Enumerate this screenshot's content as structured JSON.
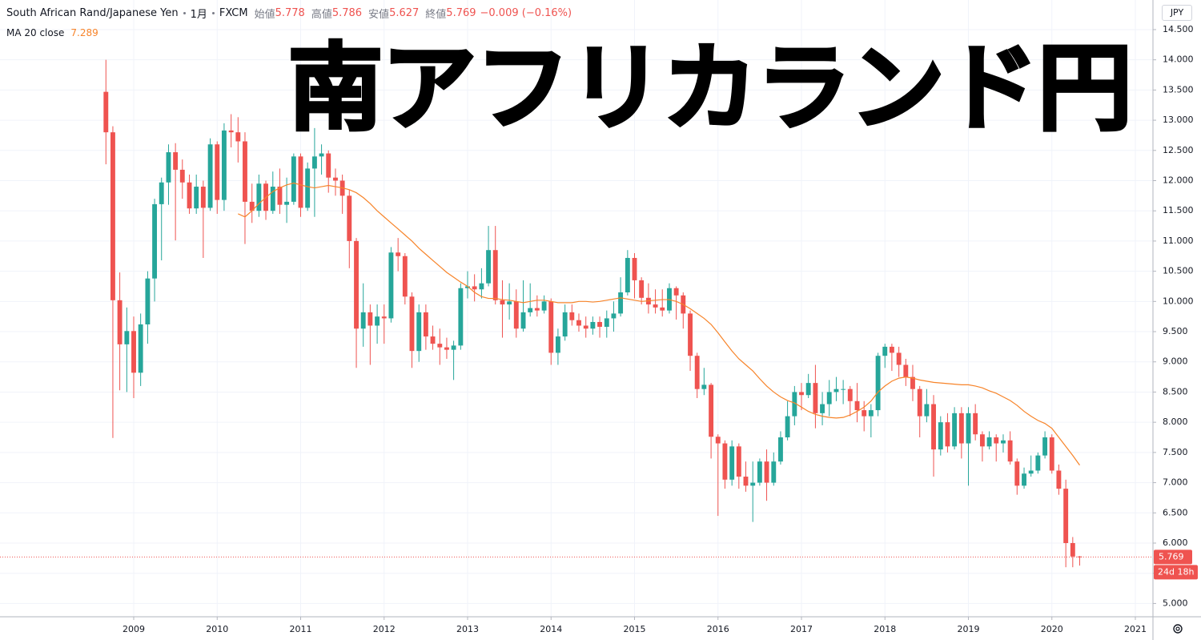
{
  "chart_data": {
    "type": "candlestick",
    "symbol": "South African Rand/Japanese Yen",
    "interval": "1月",
    "exchange": "FXCM",
    "ohlc_labels": [
      "始値",
      "高値",
      "安値",
      "終値"
    ],
    "change": "−0.009 (−0.16%)",
    "overlay_title": "南アフリカランド円",
    "currency": "JPY",
    "countdown": "24d 18h",
    "up_color": "#26a69a",
    "down_color": "#ef5350",
    "grid": true,
    "x": [
      2008.667,
      2008.75,
      2008.833,
      2008.917,
      2009,
      2009.083,
      2009.167,
      2009.25,
      2009.333,
      2009.417,
      2009.5,
      2009.583,
      2009.667,
      2009.75,
      2009.833,
      2009.917,
      2010,
      2010.083,
      2010.167,
      2010.25,
      2010.333,
      2010.417,
      2010.5,
      2010.583,
      2010.667,
      2010.75,
      2010.833,
      2010.917,
      2011,
      2011.083,
      2011.167,
      2011.25,
      2011.333,
      2011.417,
      2011.5,
      2011.583,
      2011.667,
      2011.75,
      2011.833,
      2011.917,
      2012,
      2012.083,
      2012.167,
      2012.25,
      2012.333,
      2012.417,
      2012.5,
      2012.583,
      2012.667,
      2012.75,
      2012.833,
      2012.917,
      2013,
      2013.083,
      2013.167,
      2013.25,
      2013.333,
      2013.417,
      2013.5,
      2013.583,
      2013.667,
      2013.75,
      2013.833,
      2013.917,
      2014,
      2014.083,
      2014.167,
      2014.25,
      2014.333,
      2014.417,
      2014.5,
      2014.583,
      2014.667,
      2014.75,
      2014.833,
      2014.917,
      2015,
      2015.083,
      2015.167,
      2015.25,
      2015.333,
      2015.417,
      2015.5,
      2015.583,
      2015.667,
      2015.75,
      2015.833,
      2015.917,
      2016,
      2016.083,
      2016.167,
      2016.25,
      2016.333,
      2016.417,
      2016.5,
      2016.583,
      2016.667,
      2016.75,
      2016.833,
      2016.917,
      2017,
      2017.083,
      2017.167,
      2017.25,
      2017.333,
      2017.417,
      2017.5,
      2017.583,
      2017.667,
      2017.75,
      2017.833,
      2017.917,
      2018,
      2018.083,
      2018.167,
      2018.25,
      2018.333,
      2018.417,
      2018.5,
      2018.583,
      2018.667,
      2018.75,
      2018.833,
      2018.917,
      2019,
      2019.083,
      2019.167,
      2019.25,
      2019.333,
      2019.417,
      2019.5,
      2019.583,
      2019.667,
      2019.75,
      2019.833,
      2019.917,
      2020,
      2020.083,
      2020.167,
      2020.25,
      2020.333
    ],
    "open": [
      13.47,
      12.8,
      10.02,
      9.29,
      9.51,
      8.82,
      9.62,
      10.38,
      11.61,
      11.97,
      12.47,
      12.18,
      11.97,
      11.54,
      11.9,
      11.55,
      12.6,
      11.68,
      12.83,
      12.8,
      12.65,
      11.65,
      11.5,
      11.95,
      11.5,
      11.9,
      11.6,
      11.65,
      12.4,
      11.55,
      12.2,
      12.4,
      12.45,
      12.05,
      12.0,
      11.75,
      11.0,
      9.55,
      9.82,
      9.6,
      9.75,
      9.72,
      10.81,
      10.75,
      10.08,
      9.18,
      9.82,
      9.42,
      9.3,
      9.24,
      9.2,
      9.27,
      10.22,
      10.25,
      10.2,
      10.3,
      10.85,
      10.02,
      9.95,
      10.0,
      9.55,
      9.82,
      9.89,
      9.85,
      10.0,
      9.15,
      9.42,
      9.82,
      9.69,
      9.6,
      9.55,
      9.66,
      9.58,
      9.72,
      9.8,
      10.15,
      10.72,
      10.35,
      10.06,
      9.95,
      9.9,
      9.85,
      10.22,
      10.1,
      9.8,
      9.1,
      8.55,
      8.62,
      7.76,
      7.65,
      7.05,
      7.6,
      7.1,
      6.95,
      7.0,
      7.35,
      7.0,
      7.35,
      7.75,
      8.1,
      8.5,
      8.45,
      8.65,
      8.15,
      8.3,
      8.5,
      8.55,
      8.55,
      8.35,
      8.2,
      8.1,
      8.2,
      9.1,
      9.25,
      9.15,
      8.95,
      8.75,
      8.55,
      8.1,
      8.3,
      7.55,
      8.0,
      7.6,
      8.15,
      7.65,
      8.15,
      7.8,
      7.6,
      7.75,
      7.65,
      7.7,
      7.35,
      6.95,
      7.15,
      7.2,
      7.45,
      7.75,
      7.2,
      6.9,
      6.0,
      5.778
    ],
    "high": [
      14.0,
      12.9,
      10.48,
      9.9,
      9.75,
      9.8,
      10.5,
      11.7,
      12.05,
      12.6,
      12.62,
      12.35,
      12.1,
      12.1,
      12.0,
      12.7,
      12.65,
      12.95,
      13.1,
      13.05,
      12.8,
      11.95,
      12.1,
      12.0,
      12.15,
      12.2,
      12.05,
      12.45,
      12.45,
      12.3,
      12.87,
      12.6,
      12.5,
      12.2,
      12.1,
      11.85,
      11.05,
      10.3,
      9.95,
      9.95,
      9.95,
      10.9,
      11.05,
      10.8,
      10.15,
      9.95,
      9.95,
      9.6,
      9.55,
      9.4,
      9.35,
      10.3,
      10.5,
      10.45,
      10.55,
      11.25,
      11.25,
      10.35,
      10.3,
      10.2,
      10.35,
      10.3,
      10.1,
      10.1,
      10.05,
      9.55,
      9.95,
      9.95,
      9.8,
      9.75,
      9.75,
      9.75,
      9.85,
      10.0,
      10.4,
      10.85,
      10.8,
      10.4,
      10.3,
      10.2,
      10.2,
      10.3,
      10.25,
      10.15,
      9.85,
      9.15,
      8.9,
      8.65,
      7.8,
      7.7,
      7.7,
      7.65,
      7.35,
      7.35,
      7.4,
      7.55,
      7.5,
      7.85,
      8.35,
      8.6,
      8.65,
      8.8,
      8.95,
      8.5,
      8.7,
      8.75,
      8.7,
      8.6,
      8.65,
      8.35,
      8.3,
      9.15,
      9.3,
      9.3,
      9.25,
      9.05,
      8.95,
      8.6,
      8.55,
      8.45,
      8.1,
      8.15,
      8.25,
      8.25,
      8.25,
      8.3,
      7.85,
      7.85,
      7.8,
      7.8,
      7.85,
      7.4,
      7.25,
      7.45,
      7.5,
      7.85,
      7.8,
      7.3,
      7.05,
      6.1,
      5.786
    ],
    "low": [
      12.27,
      7.74,
      8.53,
      8.5,
      8.4,
      8.6,
      9.3,
      10.0,
      10.68,
      11.6,
      11.01,
      11.7,
      11.45,
      11.45,
      10.72,
      11.5,
      11.45,
      11.5,
      12.55,
      12.3,
      10.95,
      11.3,
      11.4,
      11.35,
      11.45,
      11.45,
      11.3,
      11.6,
      11.4,
      11.5,
      11.4,
      12.1,
      11.8,
      11.75,
      11.45,
      10.55,
      8.9,
      9.25,
      8.95,
      9.3,
      9.3,
      9.65,
      10.5,
      9.95,
      8.9,
      9.0,
      9.2,
      9.2,
      8.95,
      9.05,
      8.7,
      9.2,
      10.05,
      10.0,
      10.05,
      10.25,
      9.95,
      9.4,
      9.7,
      9.4,
      9.5,
      9.75,
      9.75,
      9.8,
      8.95,
      8.95,
      9.35,
      9.6,
      9.5,
      9.4,
      9.45,
      9.4,
      9.4,
      9.5,
      9.75,
      10.1,
      10.05,
      9.95,
      9.8,
      9.8,
      9.75,
      9.8,
      9.7,
      9.55,
      8.85,
      8.4,
      8.45,
      7.4,
      6.45,
      6.9,
      6.95,
      6.9,
      6.85,
      6.35,
      6.95,
      6.7,
      6.95,
      7.3,
      7.7,
      7.95,
      8.2,
      8.4,
      7.9,
      7.95,
      8.1,
      8.35,
      8.3,
      8.1,
      8.0,
      7.85,
      7.75,
      8.1,
      8.9,
      8.85,
      8.75,
      8.6,
      8.35,
      7.75,
      8.0,
      7.1,
      7.45,
      7.5,
      7.55,
      7.4,
      6.95,
      7.7,
      7.35,
      7.55,
      7.35,
      7.5,
      7.3,
      6.8,
      6.9,
      7.1,
      7.15,
      7.4,
      7.15,
      6.8,
      5.6,
      5.6,
      5.627
    ],
    "close": [
      12.8,
      10.02,
      9.29,
      9.51,
      8.82,
      9.62,
      10.38,
      11.61,
      11.97,
      12.47,
      12.18,
      11.97,
      11.54,
      11.9,
      11.55,
      12.6,
      11.68,
      12.83,
      12.8,
      12.65,
      11.65,
      11.5,
      11.95,
      11.5,
      11.9,
      11.6,
      11.65,
      12.4,
      11.55,
      12.2,
      12.4,
      12.45,
      12.05,
      12.0,
      11.75,
      11.0,
      9.55,
      9.82,
      9.6,
      9.75,
      9.72,
      10.81,
      10.75,
      10.08,
      9.18,
      9.82,
      9.42,
      9.3,
      9.24,
      9.2,
      9.27,
      10.22,
      10.25,
      10.2,
      10.3,
      10.85,
      10.02,
      9.95,
      10.0,
      9.55,
      9.82,
      9.89,
      9.85,
      10.0,
      9.15,
      9.42,
      9.82,
      9.69,
      9.6,
      9.55,
      9.66,
      9.58,
      9.72,
      9.8,
      10.15,
      10.72,
      10.35,
      10.06,
      9.95,
      9.9,
      9.85,
      10.22,
      10.1,
      9.8,
      9.1,
      8.55,
      8.62,
      7.76,
      7.65,
      7.05,
      7.6,
      7.1,
      6.95,
      7.0,
      7.35,
      7.0,
      7.35,
      7.75,
      8.1,
      8.5,
      8.45,
      8.65,
      8.15,
      8.3,
      8.5,
      8.55,
      8.55,
      8.35,
      8.2,
      8.1,
      8.2,
      9.1,
      9.25,
      9.15,
      8.95,
      8.75,
      8.55,
      8.1,
      8.3,
      7.55,
      8.0,
      7.6,
      8.15,
      7.65,
      8.15,
      7.8,
      7.6,
      7.75,
      7.65,
      7.7,
      7.35,
      6.95,
      7.15,
      7.2,
      7.45,
      7.75,
      7.2,
      6.9,
      6.0,
      5.778,
      5.769
    ],
    "ma": {
      "name": "MA 20 close",
      "color": "#f7842a",
      "values": [
        null,
        null,
        null,
        null,
        null,
        null,
        null,
        null,
        null,
        null,
        null,
        null,
        null,
        null,
        null,
        null,
        null,
        null,
        null,
        11.45,
        11.4,
        11.5,
        11.62,
        11.72,
        11.82,
        11.88,
        11.93,
        11.96,
        11.93,
        11.9,
        11.88,
        11.9,
        11.92,
        11.9,
        11.88,
        11.85,
        11.8,
        11.72,
        11.62,
        11.5,
        11.4,
        11.3,
        11.2,
        11.1,
        11.0,
        10.88,
        10.78,
        10.68,
        10.58,
        10.48,
        10.4,
        10.32,
        10.25,
        10.15,
        10.08,
        10.05,
        10.05,
        10.03,
        10.02,
        10.0,
        9.98,
        10.0,
        10.02,
        10.02,
        10.0,
        9.98,
        9.98,
        9.98,
        10.0,
        10.0,
        9.99,
        10.0,
        10.02,
        10.04,
        10.06,
        10.04,
        10.02,
        10.0,
        10.01,
        10.02,
        10.03,
        10.03,
        10.0,
        9.95,
        9.88,
        9.8,
        9.72,
        9.62,
        9.48,
        9.33,
        9.18,
        9.05,
        8.95,
        8.85,
        8.72,
        8.6,
        8.5,
        8.42,
        8.36,
        8.32,
        8.25,
        8.18,
        8.13,
        8.1,
        8.08,
        8.07,
        8.08,
        8.12,
        8.18,
        8.25,
        8.35,
        8.5,
        8.6,
        8.68,
        8.73,
        8.75,
        8.73,
        8.7,
        8.68,
        8.66,
        8.65,
        8.64,
        8.63,
        8.62,
        8.62,
        8.6,
        8.57,
        8.52,
        8.48,
        8.42,
        8.36,
        8.28,
        8.18,
        8.1,
        8.03,
        7.98,
        7.9,
        7.75,
        7.6,
        7.45,
        7.289
      ]
    },
    "xlim": [
      2007.398,
      2021.211
    ],
    "xticks": [
      2009,
      2010,
      2011,
      2012,
      2013,
      2014,
      2015,
      2016,
      2017,
      2018,
      2019,
      2020,
      2021
    ],
    "ylim": [
      4.78,
      14.99
    ],
    "yticks": [
      {
        "value": 5,
        "label": "5.000"
      },
      {
        "value": 5.5,
        "label": "5.500"
      },
      {
        "value": 6,
        "label": "6.000"
      },
      {
        "value": 6.5,
        "label": "6.500"
      },
      {
        "value": 7,
        "label": "7.000"
      },
      {
        "value": 7.5,
        "label": "7.500"
      },
      {
        "value": 8,
        "label": "8.000"
      },
      {
        "value": 8.5,
        "label": "8.500"
      },
      {
        "value": 9,
        "label": "9.000"
      },
      {
        "value": 9.5,
        "label": "9.500"
      },
      {
        "value": 10,
        "label": "10.000"
      },
      {
        "value": 10.5,
        "label": "10.500"
      },
      {
        "value": 11,
        "label": "11.000"
      },
      {
        "value": 11.5,
        "label": "11.500"
      },
      {
        "value": 12,
        "label": "12.000"
      },
      {
        "value": 12.5,
        "label": "12.500"
      },
      {
        "value": 13,
        "label": "13.000"
      },
      {
        "value": 13.5,
        "label": "13.500"
      },
      {
        "value": 14,
        "label": "14.000"
      },
      {
        "value": 14.5,
        "label": "14.500"
      }
    ]
  }
}
